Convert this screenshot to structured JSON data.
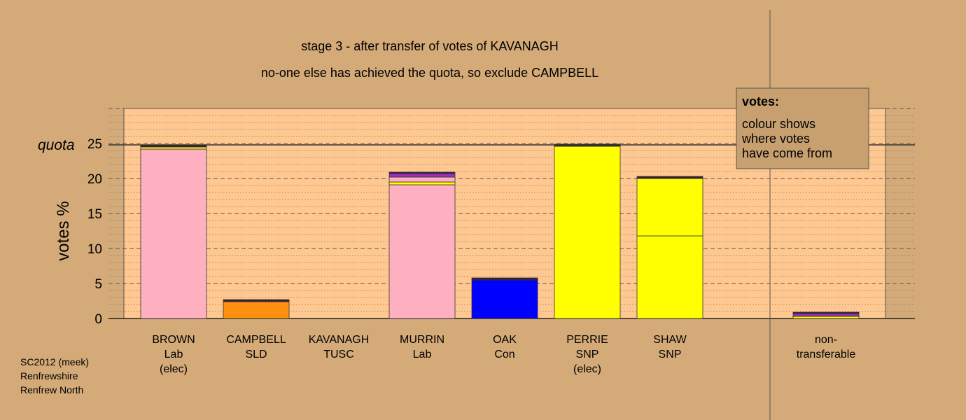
{
  "chart_data": {
    "type": "bar",
    "stacked": true,
    "title": "stage 3 - after transfer of votes of KAVANAGH",
    "subtitle": "no-one else has achieved the quota, so exclude CAMPBELL",
    "ylabel": "votes %",
    "ylim": [
      0,
      30
    ],
    "yticks": [
      0,
      5,
      10,
      15,
      20,
      25
    ],
    "quota": 24.8,
    "quota_label": "quota",
    "grid": true,
    "categories": [
      {
        "line1": "BROWN",
        "line2": "Lab",
        "line3": "(elec)"
      },
      {
        "line1": "CAMPBELL",
        "line2": "SLD",
        "line3": ""
      },
      {
        "line1": "KAVANAGH",
        "line2": "TUSC",
        "line3": ""
      },
      {
        "line1": "MURRIN",
        "line2": "Lab",
        "line3": ""
      },
      {
        "line1": "OAK",
        "line2": "Con",
        "line3": ""
      },
      {
        "line1": "PERRIE",
        "line2": "SNP",
        "line3": "(elec)"
      },
      {
        "line1": "SHAW",
        "line2": "SNP",
        "line3": ""
      },
      {
        "line1": "non-",
        "line2": "transferable",
        "line3": ""
      }
    ],
    "bars": [
      [
        {
          "value": 24.2,
          "color": "#ffb0c0"
        },
        {
          "value": 0.3,
          "color": "#ffff00"
        },
        {
          "value": 0.3,
          "color": "#3a1a3a"
        }
      ],
      [
        {
          "value": 2.4,
          "color": "#ff9010"
        },
        {
          "value": 0.3,
          "color": "#3a1a3a"
        }
      ],
      [],
      [
        {
          "value": 19.1,
          "color": "#ffb0c0"
        },
        {
          "value": 0.4,
          "color": "#ffff00"
        },
        {
          "value": 0.7,
          "color": "#ffb0c0"
        },
        {
          "value": 0.5,
          "color": "#9b30c0"
        },
        {
          "value": 0.2,
          "color": "#3a1a3a"
        }
      ],
      [
        {
          "value": 5.5,
          "color": "#0000ff"
        },
        {
          "value": 0.3,
          "color": "#3a1a3a"
        }
      ],
      [
        {
          "value": 24.6,
          "color": "#ffff00"
        },
        {
          "value": 0.3,
          "color": "#3a1a3a"
        }
      ],
      [
        {
          "value": 11.8,
          "color": "#ffff00"
        },
        {
          "value": 8.2,
          "color": "#ffff00"
        },
        {
          "value": 0.3,
          "color": "#3a1a3a"
        }
      ],
      [
        {
          "value": 0.3,
          "color": "#ffff00"
        },
        {
          "value": 0.4,
          "color": "#9b30c0"
        },
        {
          "value": 0.2,
          "color": "#3a1a3a"
        }
      ]
    ]
  },
  "legend": {
    "heading": "votes:",
    "line1": "colour shows",
    "line2": "where votes",
    "line3": "have come from"
  },
  "source": {
    "line1": "SC2012 (meek)",
    "line2": "Renfrewshire",
    "line3": "Renfrew North"
  },
  "colors": {
    "background": "#d4aa78",
    "plot_area": "#ffc890",
    "legend_box": "#c8a070"
  }
}
